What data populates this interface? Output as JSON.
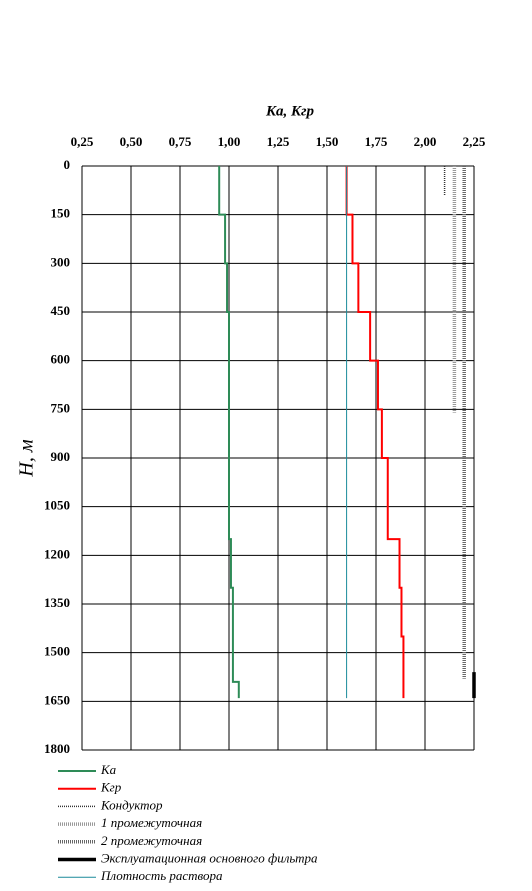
{
  "chart_data": {
    "type": "line",
    "x_label": "Ka, Kгр",
    "y_label": "H, м",
    "xlim": [
      0.25,
      2.25
    ],
    "xticks": [
      {
        "value": 0.25,
        "label": "0,25"
      },
      {
        "value": 0.5,
        "label": "0,50"
      },
      {
        "value": 0.75,
        "label": "0,75"
      },
      {
        "value": 1.0,
        "label": "1,00"
      },
      {
        "value": 1.25,
        "label": "1,25"
      },
      {
        "value": 1.5,
        "label": "1,50"
      },
      {
        "value": 1.75,
        "label": "1,75"
      },
      {
        "value": 2.0,
        "label": "2,00"
      },
      {
        "value": 2.25,
        "label": "2,25"
      }
    ],
    "ylim": [
      0,
      1800
    ],
    "yticks": [
      0,
      150,
      300,
      450,
      600,
      750,
      900,
      1050,
      1200,
      1350,
      1500,
      1650,
      1800
    ],
    "y_inverted": true,
    "grid": true,
    "series": [
      {
        "name": "Ka",
        "color": "#2e8b57",
        "style": "solid",
        "x": [
          0.95,
          0.95,
          0.98,
          0.98,
          0.99,
          0.99,
          1.0,
          1.0,
          1.01,
          1.01,
          1.02,
          1.02,
          1.05,
          1.05
        ],
        "y": [
          0,
          150,
          150,
          300,
          300,
          450,
          450,
          1150,
          1150,
          1300,
          1300,
          1590,
          1590,
          1640
        ]
      },
      {
        "name": "Kгр",
        "color": "#ff0000",
        "style": "solid",
        "x": [
          1.6,
          1.6,
          1.63,
          1.63,
          1.66,
          1.66,
          1.72,
          1.72,
          1.76,
          1.76,
          1.78,
          1.78,
          1.81,
          1.81,
          1.87,
          1.87,
          1.88,
          1.88,
          1.89,
          1.89
        ],
        "y": [
          0,
          150,
          150,
          300,
          300,
          450,
          450,
          600,
          600,
          750,
          750,
          900,
          900,
          1150,
          1150,
          1300,
          1300,
          1450,
          1450,
          1640
        ]
      },
      {
        "name": "Кондуктор",
        "color": "#333333",
        "style": "dotted-thin",
        "x": [
          2.1,
          2.1
        ],
        "y": [
          0,
          90
        ]
      },
      {
        "name": "1 промежуточная",
        "color": "#999999",
        "style": "dotted-wide",
        "x": [
          2.15,
          2.15
        ],
        "y": [
          0,
          760
        ]
      },
      {
        "name": "2 промежуточная",
        "color": "#666666",
        "style": "dotted-wide",
        "x": [
          2.2,
          2.2
        ],
        "y": [
          0,
          1580
        ]
      },
      {
        "name": "Эксплуатационная основного фильтра",
        "color": "#000000",
        "style": "thick",
        "x": [
          2.25,
          2.25
        ],
        "y": [
          1560,
          1640
        ]
      },
      {
        "name": "Плотность раствора",
        "color": "#1a8a9a",
        "style": "thin",
        "x": [
          1.6,
          1.6
        ],
        "y": [
          0,
          1640
        ]
      }
    ]
  }
}
